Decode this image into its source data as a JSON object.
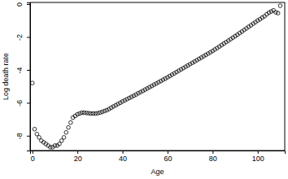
{
  "chart_data": {
    "type": "scatter",
    "x_label": "Age",
    "y_label": "Log death rate",
    "x": [
      0,
      1,
      2,
      3,
      4,
      5,
      6,
      7,
      8,
      9,
      10,
      11,
      12,
      13,
      14,
      15,
      16,
      17,
      18,
      19,
      20,
      21,
      22,
      23,
      24,
      25,
      26,
      27,
      28,
      29,
      30,
      31,
      32,
      33,
      34,
      35,
      36,
      37,
      38,
      39,
      40,
      41,
      42,
      43,
      44,
      45,
      46,
      47,
      48,
      49,
      50,
      51,
      52,
      53,
      54,
      55,
      56,
      57,
      58,
      59,
      60,
      61,
      62,
      63,
      64,
      65,
      66,
      67,
      68,
      69,
      70,
      71,
      72,
      73,
      74,
      75,
      76,
      77,
      78,
      79,
      80,
      81,
      82,
      83,
      84,
      85,
      86,
      87,
      88,
      89,
      90,
      91,
      92,
      93,
      94,
      95,
      96,
      97,
      98,
      99,
      100,
      101,
      102,
      103,
      104,
      105,
      106,
      107,
      108,
      109,
      110
    ],
    "values": [
      -4.8,
      -7.6,
      -7.9,
      -8.1,
      -8.3,
      -8.4,
      -8.5,
      -8.6,
      -8.7,
      -8.7,
      -8.6,
      -8.6,
      -8.5,
      -8.3,
      -8.1,
      -7.8,
      -7.5,
      -7.2,
      -6.9,
      -6.8,
      -6.7,
      -6.65,
      -6.6,
      -6.6,
      -6.62,
      -6.63,
      -6.65,
      -6.65,
      -6.65,
      -6.63,
      -6.6,
      -6.55,
      -6.5,
      -6.45,
      -6.38,
      -6.3,
      -6.22,
      -6.15,
      -6.07,
      -6.0,
      -5.92,
      -5.85,
      -5.78,
      -5.71,
      -5.64,
      -5.57,
      -5.5,
      -5.42,
      -5.35,
      -5.28,
      -5.2,
      -5.13,
      -5.05,
      -4.98,
      -4.9,
      -4.83,
      -4.75,
      -4.68,
      -4.6,
      -4.53,
      -4.45,
      -4.37,
      -4.29,
      -4.21,
      -4.13,
      -4.05,
      -3.97,
      -3.89,
      -3.81,
      -3.73,
      -3.65,
      -3.57,
      -3.49,
      -3.41,
      -3.33,
      -3.25,
      -3.17,
      -3.09,
      -3.01,
      -2.93,
      -2.85,
      -2.76,
      -2.67,
      -2.58,
      -2.49,
      -2.4,
      -2.31,
      -2.22,
      -2.13,
      -2.04,
      -1.95,
      -1.86,
      -1.76,
      -1.67,
      -1.57,
      -1.48,
      -1.38,
      -1.29,
      -1.19,
      -1.1,
      -1.0,
      -0.92,
      -0.82,
      -0.74,
      -0.62,
      -0.52,
      -0.45,
      -0.38,
      -0.5,
      -0.55,
      -0.1
    ],
    "color": "#000000",
    "marker": "open-circle",
    "xlim": [
      -1,
      112
    ],
    "ylim": [
      -8.9,
      0.1
    ],
    "xticks": [
      0,
      20,
      40,
      60,
      80,
      100
    ],
    "yticks": [
      -8,
      -6,
      -4,
      -2,
      0
    ],
    "grid": false
  }
}
